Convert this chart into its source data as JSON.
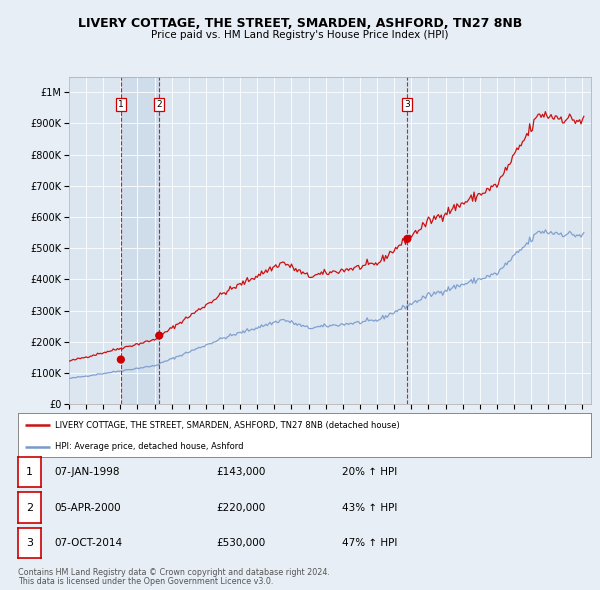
{
  "title": "LIVERY COTTAGE, THE STREET, SMARDEN, ASHFORD, TN27 8NB",
  "subtitle": "Price paid vs. HM Land Registry's House Price Index (HPI)",
  "xlim": [
    1995.0,
    2025.5
  ],
  "ylim": [
    0,
    1050000
  ],
  "yticks": [
    0,
    100000,
    200000,
    300000,
    400000,
    500000,
    600000,
    700000,
    800000,
    900000,
    1000000
  ],
  "ytick_labels": [
    "£0",
    "£100K",
    "£200K",
    "£300K",
    "£400K",
    "£500K",
    "£600K",
    "£700K",
    "£800K",
    "£900K",
    "£1M"
  ],
  "hpi_color": "#7799cc",
  "price_color": "#cc1111",
  "sale_marker_color": "#cc0000",
  "vline_color": "#cc0000",
  "sales": [
    {
      "num": 1,
      "date_label": "07-JAN-1998",
      "date_x": 1998.03,
      "price": 143000,
      "hpi_pct": "20% ↑ HPI"
    },
    {
      "num": 2,
      "date_label": "05-APR-2000",
      "date_x": 2000.27,
      "price": 220000,
      "hpi_pct": "43% ↑ HPI"
    },
    {
      "num": 3,
      "date_label": "07-OCT-2014",
      "date_x": 2014.77,
      "price": 530000,
      "hpi_pct": "47% ↑ HPI"
    }
  ],
  "legend_house_label": "LIVERY COTTAGE, THE STREET, SMARDEN, ASHFORD, TN27 8NB (detached house)",
  "legend_hpi_label": "HPI: Average price, detached house, Ashford",
  "footer1": "Contains HM Land Registry data © Crown copyright and database right 2024.",
  "footer2": "This data is licensed under the Open Government Licence v3.0.",
  "background_color": "#e8eef5",
  "plot_bg_color": "#dce6f0",
  "shade_color": "#b8cce0"
}
